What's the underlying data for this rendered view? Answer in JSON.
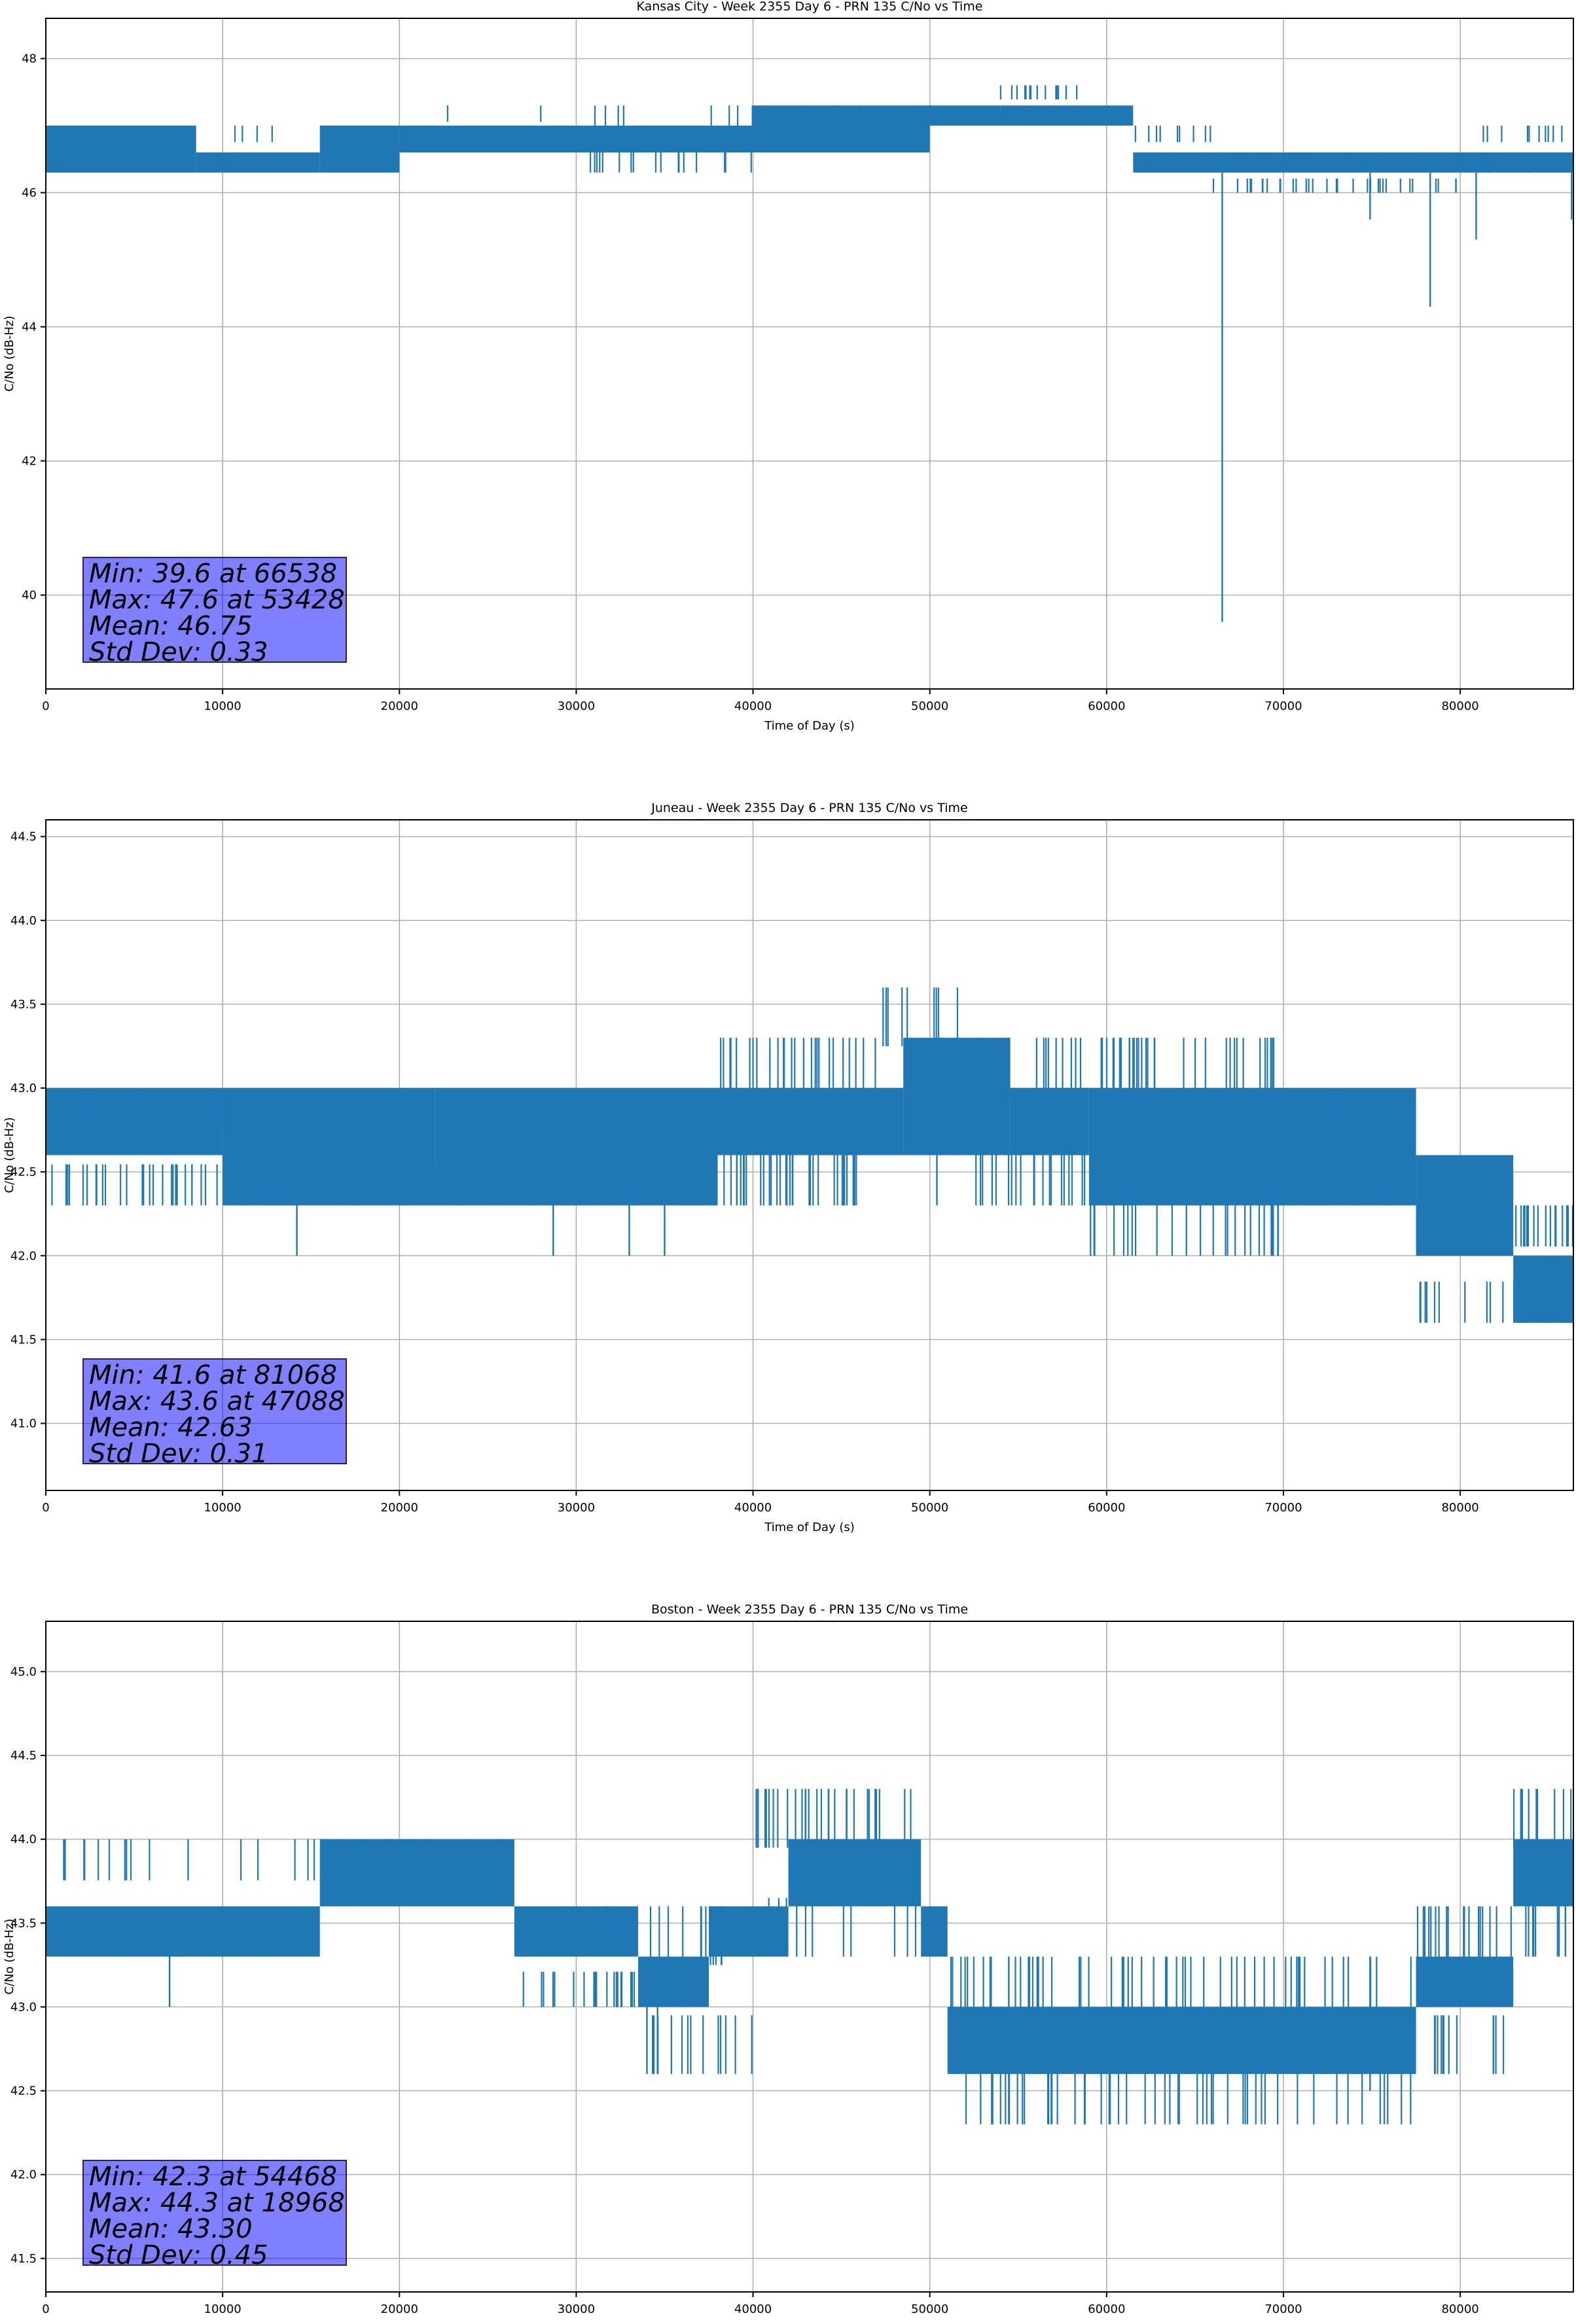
{
  "chart_data": [
    {
      "type": "line",
      "title": "Kansas City - Week 2355 Day 6 - PRN 135 C/No vs Time",
      "xlabel": "Time of Day (s)",
      "ylabel": "C/No (dB-Hz)",
      "xlim": [
        0,
        86400
      ],
      "ylim": [
        38.6,
        48.6
      ],
      "xticks": [
        0,
        10000,
        20000,
        30000,
        40000,
        50000,
        60000,
        70000,
        80000
      ],
      "yticks": [
        40,
        42,
        44,
        46,
        48
      ],
      "grid": true,
      "color": "#1f77b4",
      "bands": [
        {
          "x": [
            0,
            8500
          ],
          "lo": 46.3,
          "hi": 47.0
        },
        {
          "x": [
            8500,
            15500
          ],
          "lo": 46.3,
          "hi": 46.6
        },
        {
          "x": [
            15500,
            20000
          ],
          "lo": 46.3,
          "hi": 47.0
        },
        {
          "x": [
            20000,
            30000
          ],
          "lo": 46.6,
          "hi": 47.0
        },
        {
          "x": [
            30000,
            40000
          ],
          "lo": 46.6,
          "hi": 47.0
        },
        {
          "x": [
            40000,
            50000
          ],
          "lo": 46.6,
          "hi": 47.3
        },
        {
          "x": [
            50000,
            54000
          ],
          "lo": 47.0,
          "hi": 47.3
        },
        {
          "x": [
            54000,
            61500
          ],
          "lo": 47.0,
          "hi": 47.3
        },
        {
          "x": [
            61500,
            86400
          ],
          "lo": 46.3,
          "hi": 46.6
        }
      ],
      "spikes": [
        {
          "x": [
            8500,
            15500
          ],
          "lo": 46.3,
          "hi": 47.0,
          "count": 12
        },
        {
          "x": [
            20000,
            30000
          ],
          "lo": 46.6,
          "hi": 47.3,
          "count": 6
        },
        {
          "x": [
            30000,
            40000
          ],
          "lo": 46.3,
          "hi": 47.3,
          "count": 25
        },
        {
          "x": [
            40000,
            50000
          ],
          "lo": 46.6,
          "hi": 47.3,
          "count": 40
        },
        {
          "x": [
            54000,
            58500
          ],
          "lo": 47.0,
          "hi": 47.6,
          "count": 30
        },
        {
          "x": [
            61500,
            66000
          ],
          "lo": 46.3,
          "hi": 47.0,
          "count": 20
        },
        {
          "x": [
            66000,
            80000
          ],
          "lo": 46.0,
          "hi": 46.6,
          "count": 70
        },
        {
          "x": [
            81000,
            86400
          ],
          "lo": 46.3,
          "hi": 47.0,
          "count": 25
        }
      ],
      "dips": [
        {
          "x": 66538,
          "y": 39.6
        },
        {
          "x": 74900,
          "y": 45.6
        },
        {
          "x": 78300,
          "y": 44.3
        },
        {
          "x": 80900,
          "y": 45.3
        },
        {
          "x": 86300,
          "y": 45.6
        }
      ],
      "stats": [
        "Min: 39.6 at 66538",
        "Max: 47.6 at 53428",
        "Mean: 46.75",
        "Std Dev: 0.33"
      ]
    },
    {
      "type": "line",
      "title": "Juneau - Week 2355 Day 6 - PRN 135 C/No vs Time",
      "xlabel": "Time of Day (s)",
      "ylabel": "C/No (dB-Hz)",
      "xlim": [
        0,
        86400
      ],
      "ylim": [
        40.6,
        44.6
      ],
      "xticks": [
        0,
        10000,
        20000,
        30000,
        40000,
        50000,
        60000,
        70000,
        80000
      ],
      "yticks": [
        41.0,
        41.5,
        42.0,
        42.5,
        43.0,
        43.5,
        44.0,
        44.5
      ],
      "grid": true,
      "color": "#1f77b4",
      "bands": [
        {
          "x": [
            0,
            10000
          ],
          "lo": 42.6,
          "hi": 43.0
        },
        {
          "x": [
            10000,
            22000
          ],
          "lo": 42.3,
          "hi": 43.0
        },
        {
          "x": [
            22000,
            38000
          ],
          "lo": 42.3,
          "hi": 43.0
        },
        {
          "x": [
            38000,
            48500
          ],
          "lo": 42.6,
          "hi": 43.0
        },
        {
          "x": [
            48500,
            54500
          ],
          "lo": 42.6,
          "hi": 43.3
        },
        {
          "x": [
            54500,
            59000
          ],
          "lo": 42.6,
          "hi": 43.0
        },
        {
          "x": [
            59000,
            77500
          ],
          "lo": 42.3,
          "hi": 43.0
        },
        {
          "x": [
            77500,
            83000
          ],
          "lo": 42.0,
          "hi": 42.6
        },
        {
          "x": [
            83000,
            86400
          ],
          "lo": 41.6,
          "hi": 42.0
        }
      ],
      "spikes": [
        {
          "x": [
            0,
            10000
          ],
          "lo": 42.3,
          "hi": 43.0,
          "count": 60
        },
        {
          "x": [
            10000,
            38000
          ],
          "lo": 42.3,
          "hi": 43.0,
          "count": 120
        },
        {
          "x": [
            38000,
            47000
          ],
          "lo": 42.3,
          "hi": 43.3,
          "count": 60
        },
        {
          "x": [
            47000,
            52000
          ],
          "lo": 42.6,
          "hi": 43.6,
          "count": 12
        },
        {
          "x": [
            52000,
            59000
          ],
          "lo": 42.3,
          "hi": 43.3,
          "count": 35
        },
        {
          "x": [
            59000,
            70000
          ],
          "lo": 42.0,
          "hi": 43.3,
          "count": 60
        },
        {
          "x": [
            70000,
            77500
          ],
          "lo": 42.3,
          "hi": 43.0,
          "count": 40
        },
        {
          "x": [
            77500,
            86400
          ],
          "lo": 41.6,
          "hi": 42.3,
          "count": 60
        }
      ],
      "dips": [
        {
          "x": 14200,
          "y": 42.0
        },
        {
          "x": 28700,
          "y": 42.0
        },
        {
          "x": 33000,
          "y": 42.0
        },
        {
          "x": 35000,
          "y": 42.0
        },
        {
          "x": 50400,
          "y": 42.3
        }
      ],
      "stats": [
        "Min: 41.6 at 81068",
        "Max: 43.6 at 47088",
        "Mean: 42.63",
        "Std Dev: 0.31"
      ]
    },
    {
      "type": "line",
      "title": "Boston - Week 2355 Day 6 - PRN 135 C/No vs Time",
      "xlabel": "Time of Day (s)",
      "ylabel": "C/No (dB-Hz)",
      "xlim": [
        0,
        86400
      ],
      "ylim": [
        41.3,
        45.3
      ],
      "xticks": [
        0,
        10000,
        20000,
        30000,
        40000,
        50000,
        60000,
        70000,
        80000
      ],
      "yticks": [
        41.5,
        42.0,
        42.5,
        43.0,
        43.5,
        44.0,
        44.5,
        45.0
      ],
      "grid": true,
      "color": "#1f77b4",
      "bands": [
        {
          "x": [
            0,
            15500
          ],
          "lo": 43.3,
          "hi": 43.6
        },
        {
          "x": [
            15500,
            26500
          ],
          "lo": 43.6,
          "hi": 44.0
        },
        {
          "x": [
            26500,
            33500
          ],
          "lo": 43.3,
          "hi": 43.6
        },
        {
          "x": [
            33500,
            37500
          ],
          "lo": 43.0,
          "hi": 43.3
        },
        {
          "x": [
            37500,
            42000
          ],
          "lo": 43.3,
          "hi": 43.6
        },
        {
          "x": [
            42000,
            49500
          ],
          "lo": 43.6,
          "hi": 44.0
        },
        {
          "x": [
            49500,
            51000
          ],
          "lo": 43.3,
          "hi": 43.6
        },
        {
          "x": [
            51000,
            77500
          ],
          "lo": 42.6,
          "hi": 43.0
        },
        {
          "x": [
            77500,
            83000
          ],
          "lo": 43.0,
          "hi": 43.3
        },
        {
          "x": [
            83000,
            86400
          ],
          "lo": 43.6,
          "hi": 44.0
        }
      ],
      "spikes": [
        {
          "x": [
            0,
            15500
          ],
          "lo": 43.3,
          "hi": 44.0,
          "count": 30
        },
        {
          "x": [
            15500,
            26500
          ],
          "lo": 43.6,
          "hi": 44.0,
          "count": 40
        },
        {
          "x": [
            26500,
            33500
          ],
          "lo": 43.0,
          "hi": 43.6,
          "count": 40
        },
        {
          "x": [
            33500,
            40000
          ],
          "lo": 42.6,
          "hi": 43.6,
          "count": 25
        },
        {
          "x": [
            40000,
            49500
          ],
          "lo": 43.3,
          "hi": 44.3,
          "count": 40
        },
        {
          "x": [
            51000,
            77500
          ],
          "lo": 42.3,
          "hi": 43.3,
          "count": 110
        },
        {
          "x": [
            77500,
            83000
          ],
          "lo": 42.6,
          "hi": 43.6,
          "count": 30
        },
        {
          "x": [
            83000,
            86400
          ],
          "lo": 43.3,
          "hi": 44.3,
          "count": 20
        }
      ],
      "dips": [
        {
          "x": 7000,
          "y": 43.0
        },
        {
          "x": 34000,
          "y": 42.6
        },
        {
          "x": 34600,
          "y": 42.6
        },
        {
          "x": 54468,
          "y": 42.3
        },
        {
          "x": 74900,
          "y": 42.5
        }
      ],
      "stats": [
        "Min: 42.3 at 54468",
        "Max: 44.3 at 18968",
        "Mean: 43.30",
        "Std Dev: 0.45"
      ]
    }
  ]
}
